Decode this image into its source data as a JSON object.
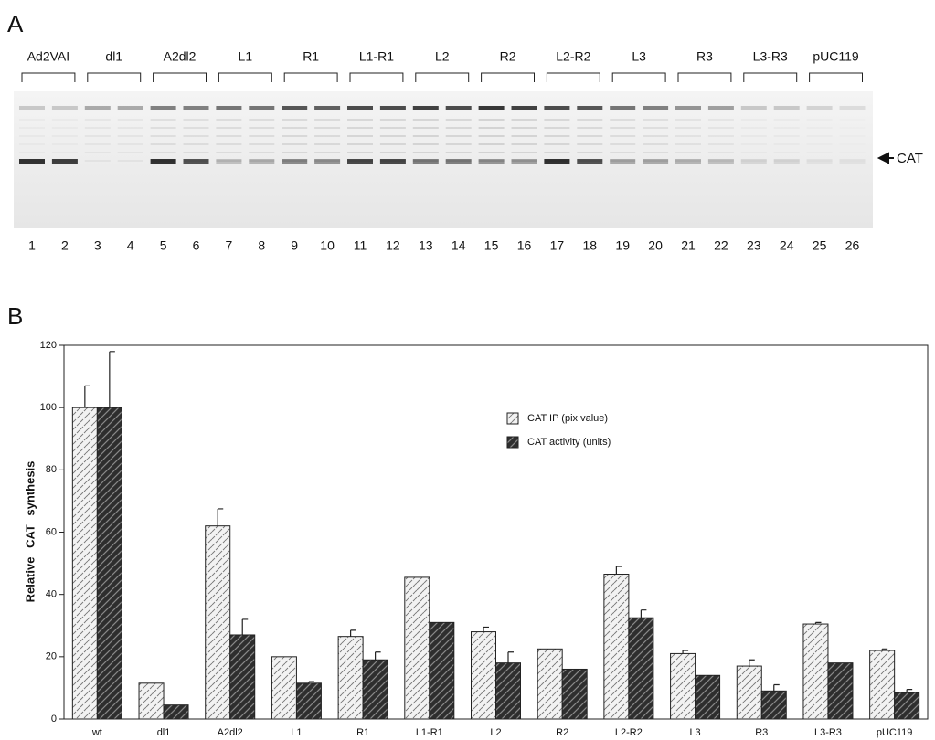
{
  "panel_labels": [
    "A",
    "B"
  ],
  "gel": {
    "groups": [
      "Ad2VAI",
      "dl1",
      "A2dl2",
      "L1",
      "R1",
      "L1-R1",
      "L2",
      "R2",
      "L2-R2",
      "L3",
      "R3",
      "L3-R3",
      "pUC119"
    ],
    "lanes": [
      1,
      2,
      3,
      4,
      5,
      6,
      7,
      8,
      9,
      10,
      11,
      12,
      13,
      14,
      15,
      16,
      17,
      18,
      19,
      20,
      21,
      22,
      23,
      24,
      25,
      26
    ],
    "marker": "CAT"
  },
  "chart_data": {
    "type": "bar",
    "y_label": "Relative CAT synthesis",
    "categories": [
      "wt",
      "dl1",
      "A2dl2",
      "L1",
      "R1",
      "L1-R1",
      "L2",
      "R2",
      "L2-R2",
      "L3",
      "R3",
      "L3-R3",
      "pUC119"
    ],
    "series": [
      {
        "name": "CAT IP (pix value)",
        "color": "#f2f2f2",
        "values": [
          100,
          11.5,
          62,
          20,
          26.5,
          45.5,
          28,
          22.5,
          46.5,
          21,
          17,
          30.5,
          22
        ],
        "errors": [
          7,
          0,
          5.5,
          0,
          2,
          0,
          1.5,
          0,
          2.5,
          1,
          2,
          0.5,
          0.5
        ]
      },
      {
        "name": "CAT activity (units)",
        "color": "#2e2e2e",
        "values": [
          100,
          4.5,
          27,
          11.5,
          19,
          31,
          18,
          16,
          32.5,
          14,
          9,
          18,
          8.5
        ],
        "errors": [
          18,
          0,
          5,
          0.5,
          2.5,
          0,
          3.5,
          0,
          2.5,
          0,
          2,
          0,
          1
        ]
      }
    ],
    "ylim": [
      0,
      120
    ],
    "yticks": [
      0,
      20,
      40,
      60,
      80,
      100,
      120
    ],
    "legend": "upper right"
  }
}
